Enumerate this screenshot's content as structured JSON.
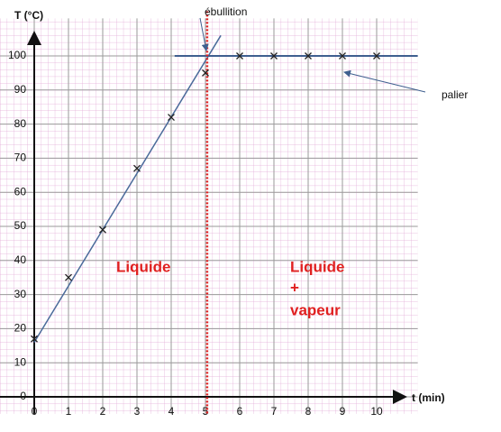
{
  "chart_data": {
    "type": "scatter",
    "y_label": "T (°C)",
    "x_label": "t (min)",
    "x": [
      0,
      1,
      2,
      3,
      4,
      5,
      6,
      7,
      8,
      9,
      10
    ],
    "values": [
      17,
      35,
      49,
      67,
      82,
      95,
      100,
      100,
      100,
      100,
      100
    ],
    "marker_color": "#222222",
    "fit_lines": [
      {
        "x": [
          0,
          5.45
        ],
        "values": [
          16,
          106
        ],
        "color": "#4a6a9a"
      },
      {
        "x": [
          4.1,
          11.2
        ],
        "values": [
          100,
          100
        ],
        "color": "#3f5f8f"
      }
    ],
    "vline": {
      "x": 5.05,
      "color": "#e02020"
    },
    "annotations": [
      "ébullition",
      "palier",
      "Liquide",
      "Liquide",
      "+",
      "vapeur"
    ],
    "xlim": [
      -1,
      11.2
    ],
    "ylim": [
      -5,
      111
    ],
    "xticks": [
      0,
      1,
      2,
      3,
      4,
      5,
      6,
      7,
      8,
      9,
      10
    ],
    "yticks": [
      0,
      10,
      20,
      30,
      40,
      50,
      60,
      70,
      80,
      90,
      100
    ],
    "grid": true
  }
}
